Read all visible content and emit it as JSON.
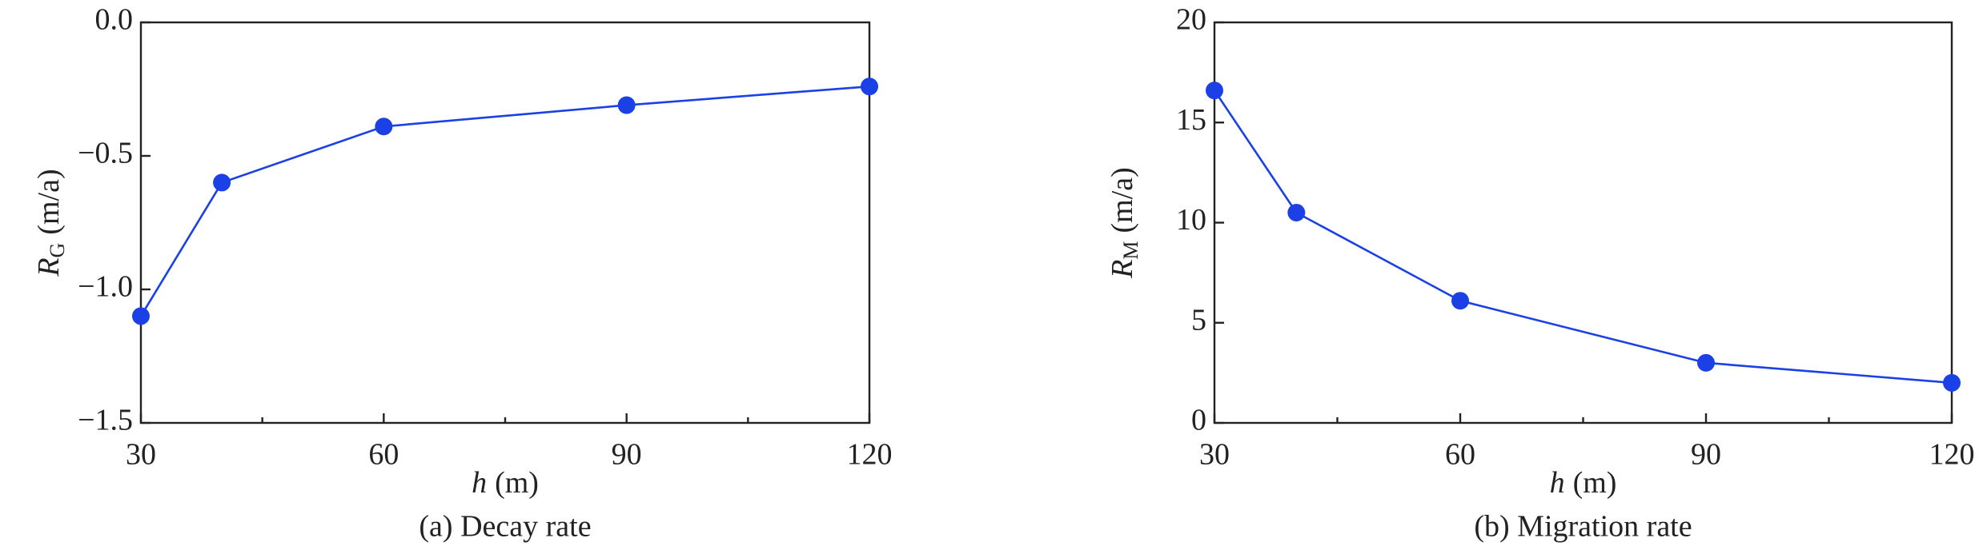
{
  "chart_data": [
    {
      "type": "line",
      "caption": "(a) Decay rate",
      "xlabel": {
        "symbol": "h",
        "unit": "(m)"
      },
      "ylabel": {
        "symbol": "R",
        "subscript": "G",
        "unit": "(m/a)"
      },
      "x": [
        30,
        40,
        60,
        90,
        120
      ],
      "series": [
        {
          "color": "#1a40e6",
          "values": [
            -1.1,
            -0.6,
            -0.39,
            -0.31,
            -0.24
          ]
        }
      ],
      "xlim": [
        30,
        120
      ],
      "xticks": [
        30,
        60,
        90,
        120
      ],
      "xminorticks": [
        45,
        75,
        105
      ],
      "ylim": [
        -1.5,
        0
      ],
      "yticks": [
        {
          "value": 0,
          "label": "0.0"
        },
        {
          "value": -0.5,
          "label": "−0.5"
        },
        {
          "value": -1,
          "label": "−1.0"
        },
        {
          "value": -1.5,
          "label": "−1.5"
        }
      ]
    },
    {
      "type": "line",
      "caption": "(b) Migration rate",
      "xlabel": {
        "symbol": "h",
        "unit": "(m)"
      },
      "ylabel": {
        "symbol": "R",
        "subscript": "M",
        "unit": "(m/a)"
      },
      "x": [
        30,
        40,
        60,
        90,
        120
      ],
      "series": [
        {
          "color": "#1a40e6",
          "values": [
            16.6,
            10.5,
            6.1,
            3.0,
            2.0
          ]
        }
      ],
      "xlim": [
        30,
        120
      ],
      "xticks": [
        30,
        60,
        90,
        120
      ],
      "xminorticks": [
        45,
        75,
        105
      ],
      "ylim": [
        0,
        20
      ],
      "yticks": [
        0,
        5,
        10,
        15,
        20
      ]
    }
  ]
}
